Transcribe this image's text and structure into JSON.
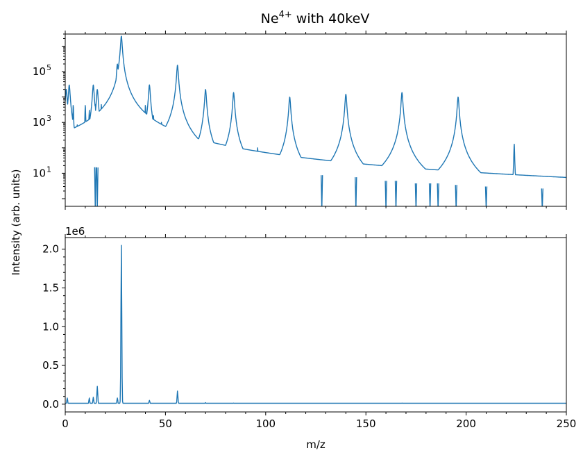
{
  "chart_data": [
    {
      "type": "line",
      "title_base": "Ne",
      "title_sup": "4+",
      "title_rest": " with 40keV",
      "yscale": "log",
      "xlim": [
        0,
        250
      ],
      "ylim": [
        0.5,
        3000000
      ],
      "x_ticks": [
        0,
        50,
        100,
        150,
        200,
        250
      ],
      "y_ticks": [
        {
          "exp": 1,
          "base": "10",
          "sup": "1"
        },
        {
          "exp": 3,
          "base": "10",
          "sup": "3"
        },
        {
          "exp": 5,
          "base": "10",
          "sup": "5"
        }
      ],
      "series": [
        {
          "color": "#1f77b4",
          "baseline": [
            [
              0,
              20
            ],
            [
              10,
              20
            ],
            [
              20,
              15
            ],
            [
              30,
              40
            ],
            [
              35,
              80
            ],
            [
              40,
              40
            ],
            [
              45,
              30
            ],
            [
              50,
              35
            ],
            [
              60,
              40
            ],
            [
              65,
              25
            ],
            [
              70,
              20
            ],
            [
              75,
              30
            ],
            [
              80,
              30
            ],
            [
              85,
              25
            ],
            [
              90,
              20
            ],
            [
              95,
              25
            ],
            [
              100,
              18
            ],
            [
              110,
              18
            ],
            [
              115,
              15
            ],
            [
              120,
              10
            ],
            [
              125,
              9
            ],
            [
              130,
              8
            ],
            [
              135,
              12
            ],
            [
              140,
              10
            ],
            [
              145,
              7
            ],
            [
              150,
              6
            ],
            [
              155,
              5
            ],
            [
              160,
              5
            ],
            [
              165,
              5
            ],
            [
              170,
              5
            ],
            [
              175,
              4
            ],
            [
              180,
              4
            ],
            [
              190,
              4
            ],
            [
              200,
              3
            ],
            [
              210,
              3
            ],
            [
              220,
              2.5
            ],
            [
              230,
              2.5
            ],
            [
              240,
              2.5
            ],
            [
              250,
              2.5
            ]
          ],
          "peaks": [
            {
              "x": 0.5,
              "y": 20000
            },
            {
              "x": 2,
              "y": 30000
            },
            {
              "x": 4,
              "y": 5000
            },
            {
              "x": 6,
              "y": 800
            },
            {
              "x": 8,
              "y": 500
            },
            {
              "x": 10,
              "y": 5000
            },
            {
              "x": 12,
              "y": 3000
            },
            {
              "x": 14,
              "y": 30000
            },
            {
              "x": 15,
              "y": 5000
            },
            {
              "x": 16,
              "y": 20000
            },
            {
              "x": 17,
              "y": 3000
            },
            {
              "x": 18,
              "y": 5000
            },
            {
              "x": 20,
              "y": 200
            },
            {
              "x": 22,
              "y": 300
            },
            {
              "x": 24,
              "y": 6000
            },
            {
              "x": 25,
              "y": 5000
            },
            {
              "x": 26,
              "y": 200000
            },
            {
              "x": 27,
              "y": 20000
            },
            {
              "x": 28,
              "y": 2500000
            },
            {
              "x": 29,
              "y": 30000
            },
            {
              "x": 30,
              "y": 5000
            },
            {
              "x": 31,
              "y": 2000
            },
            {
              "x": 32,
              "y": 1000
            },
            {
              "x": 35,
              "y": 2000
            },
            {
              "x": 37,
              "y": 1000
            },
            {
              "x": 40,
              "y": 5000
            },
            {
              "x": 42,
              "y": 30000
            },
            {
              "x": 44,
              "y": 2000
            },
            {
              "x": 48,
              "y": 1000
            },
            {
              "x": 56,
              "y": 180000
            },
            {
              "x": 70,
              "y": 20000
            },
            {
              "x": 84,
              "y": 15000
            },
            {
              "x": 96,
              "y": 100
            },
            {
              "x": 112,
              "y": 10000
            },
            {
              "x": 140,
              "y": 13000
            },
            {
              "x": 168,
              "y": 15000
            },
            {
              "x": 196,
              "y": 10000
            },
            {
              "x": 224,
              "y": 150
            }
          ],
          "dips": [
            15,
            16,
            128,
            145,
            160,
            165,
            175,
            182,
            186,
            195,
            210,
            238
          ]
        }
      ]
    },
    {
      "type": "line",
      "yscale": "linear",
      "xlim": [
        0,
        250
      ],
      "ylim": [
        -100000,
        2150000
      ],
      "offset_text": "1e6",
      "xlabel": "m/z",
      "ylabel": "Intensity (arb. units)",
      "x_ticks": [
        0,
        50,
        100,
        150,
        200,
        250
      ],
      "x_tick_labels": [
        "0",
        "50",
        "100",
        "150",
        "200",
        "250"
      ],
      "y_ticks": [
        0,
        500000,
        1000000,
        1500000,
        2000000
      ],
      "y_tick_labels": [
        "0.0",
        "0.5",
        "1.0",
        "1.5",
        "2.0"
      ],
      "series": [
        {
          "color": "#1f77b4",
          "peaks": [
            {
              "x": 1,
              "y": 80000
            },
            {
              "x": 12,
              "y": 80000
            },
            {
              "x": 14,
              "y": 90000
            },
            {
              "x": 16,
              "y": 230000
            },
            {
              "x": 26,
              "y": 80000
            },
            {
              "x": 28,
              "y": 2050000
            },
            {
              "x": 42,
              "y": 50000
            },
            {
              "x": 56,
              "y": 170000
            },
            {
              "x": 70,
              "y": 20000
            },
            {
              "x": 84,
              "y": 15000
            },
            {
              "x": 168,
              "y": 15000
            },
            {
              "x": 196,
              "y": 10000
            }
          ]
        }
      ]
    }
  ]
}
